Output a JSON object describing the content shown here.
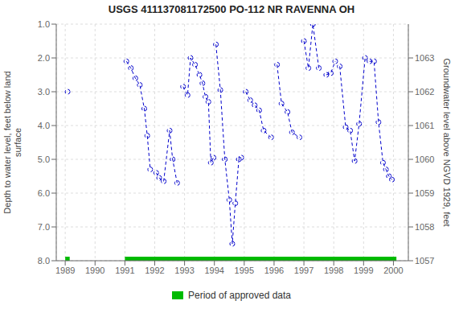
{
  "chart_data": {
    "type": "line",
    "title": "USGS 411137081172500 PO-112 NR RAVENNA OH",
    "y_label": "Depth to water level, feet below land\nsurface",
    "y2_label": "Groundwater level above NGVD 1929, feet",
    "x": [
      1989.08,
      1991.05,
      1991.2,
      1991.35,
      1991.5,
      1991.65,
      1991.75,
      1991.85,
      1992.05,
      1992.15,
      1992.3,
      1992.5,
      1992.6,
      1992.75,
      1992.95,
      1993.1,
      1993.2,
      1993.35,
      1993.5,
      1993.6,
      1993.7,
      1993.8,
      1993.88,
      1993.97,
      1994.05,
      1994.2,
      1994.35,
      1994.5,
      1994.6,
      1994.7,
      1994.82,
      1994.9,
      1995.05,
      1995.2,
      1995.35,
      1995.5,
      1995.65,
      1995.9,
      1996.1,
      1996.25,
      1996.45,
      1996.6,
      1996.85,
      1997.0,
      1997.15,
      1997.3,
      1997.5,
      1997.75,
      1997.9,
      1998.05,
      1998.2,
      1998.4,
      1998.55,
      1998.7,
      1998.85,
      1999.05,
      1999.2,
      1999.35,
      1999.5,
      1999.65,
      1999.75,
      1999.85,
      1999.95
    ],
    "series": [
      {
        "color": "#0000cc",
        "line_style": "dashed",
        "marker": "circle",
        "values": [
          3.0,
          2.1,
          2.3,
          2.6,
          2.8,
          3.5,
          4.3,
          5.3,
          5.4,
          5.55,
          5.65,
          4.15,
          5.0,
          5.7,
          2.85,
          3.1,
          2.0,
          2.2,
          2.5,
          2.75,
          3.15,
          3.3,
          5.1,
          4.95,
          1.6,
          2.95,
          5.0,
          6.2,
          7.5,
          6.3,
          5.0,
          4.95,
          3.0,
          3.25,
          3.4,
          3.55,
          4.15,
          4.35,
          2.2,
          3.35,
          3.6,
          4.2,
          4.35,
          1.5,
          2.3,
          1.0,
          2.3,
          2.5,
          2.45,
          2.1,
          2.25,
          4.05,
          4.15,
          5.05,
          3.95,
          2.0,
          2.1,
          2.1,
          3.9,
          5.1,
          5.3,
          5.5,
          5.6
        ],
        "segments": [
          [
            0,
            0
          ],
          [
            1,
            7
          ],
          [
            8,
            13
          ],
          [
            14,
            23
          ],
          [
            24,
            31
          ],
          [
            32,
            37
          ],
          [
            38,
            42
          ],
          [
            43,
            46
          ],
          [
            47,
            49
          ],
          [
            50,
            55
          ],
          [
            56,
            63
          ]
        ]
      },
      {
        "name": "Period of approved data",
        "type": "bar",
        "color": "#00bb00",
        "y": 8.0,
        "ranges": [
          [
            1989.0,
            1989.15
          ],
          [
            1991.0,
            2000.1
          ]
        ]
      }
    ],
    "xlim": [
      1988.7,
      2000.5
    ],
    "xticks": [
      1989,
      1990,
      1991,
      1992,
      1993,
      1994,
      1995,
      1996,
      1997,
      1998,
      1999,
      2000
    ],
    "ylim": [
      8.0,
      1.0
    ],
    "yticks": [
      {
        "value": 1.0,
        "label": "1.0"
      },
      {
        "value": 2.0,
        "label": "2.0"
      },
      {
        "value": 3.0,
        "label": "3.0"
      },
      {
        "value": 4.0,
        "label": "4.0"
      },
      {
        "value": 5.0,
        "label": "5.0"
      },
      {
        "value": 6.0,
        "label": "6.0"
      },
      {
        "value": 7.0,
        "label": "7.0"
      },
      {
        "value": 8.0,
        "label": "8.0"
      }
    ],
    "y2lim": [
      1057.0,
      1064.0
    ],
    "y2ticks": [
      1057.0,
      1058.0,
      1059.0,
      1060.0,
      1061.0,
      1062.0,
      1063.0
    ],
    "grid": true,
    "legend": "bottom"
  }
}
